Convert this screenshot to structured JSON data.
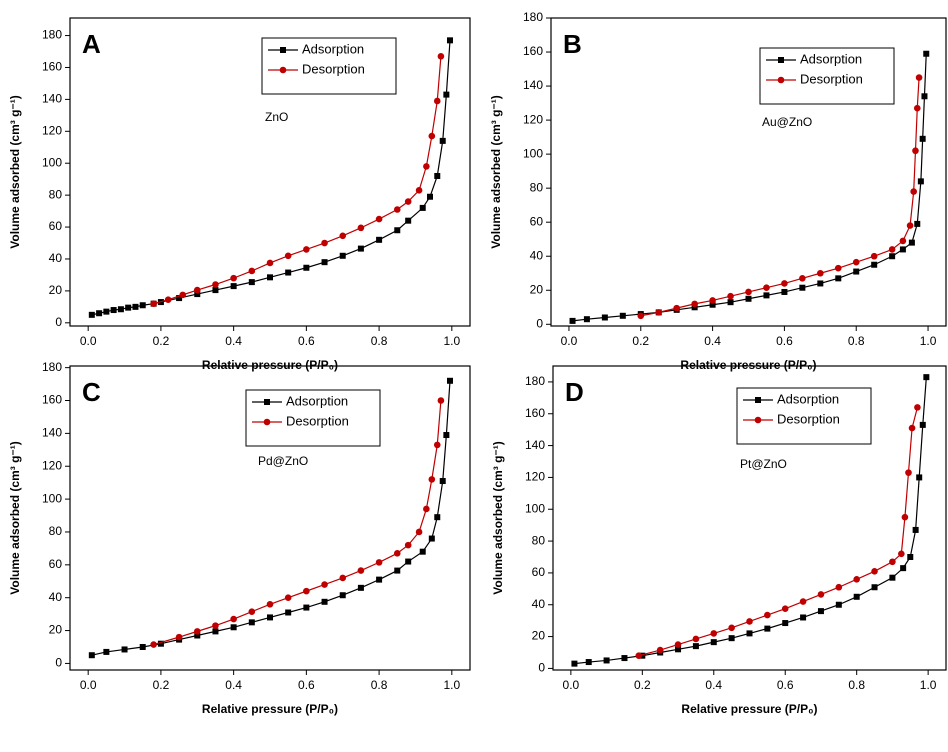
{
  "chart_data": [
    {
      "type": "line",
      "panel_label": "A",
      "sample_label": "ZnO",
      "xlabel": "Relative pressure (P/P₀)",
      "ylabel": "Volume adsorbed (cm³ g⁻¹)",
      "xlim": [
        -0.05,
        1.05
      ],
      "ylim": [
        -2,
        191
      ],
      "xticks": [
        {
          "value": 0,
          "label": "0.0"
        },
        0.2,
        0.4,
        0.6,
        0.8,
        {
          "value": 1,
          "label": "1.0"
        }
      ],
      "yticks": [
        0,
        20,
        40,
        60,
        80,
        100,
        120,
        140,
        160,
        180
      ],
      "series": [
        {
          "name": "Adsorption",
          "color": "#000000",
          "marker": "square",
          "x": [
            0.01,
            0.03,
            0.05,
            0.07,
            0.09,
            0.11,
            0.13,
            0.15,
            0.18,
            0.2,
            0.25,
            0.3,
            0.35,
            0.4,
            0.45,
            0.5,
            0.55,
            0.6,
            0.65,
            0.7,
            0.75,
            0.8,
            0.85,
            0.88,
            0.92,
            0.94,
            0.96,
            0.975,
            0.985,
            0.995
          ],
          "values": [
            5,
            6,
            7,
            8,
            8.5,
            9.5,
            10,
            11,
            12,
            13,
            15.5,
            18,
            20.5,
            23,
            25.5,
            28.5,
            31.5,
            34.5,
            38,
            42,
            46.5,
            52,
            58,
            64,
            72,
            79,
            92,
            114,
            143,
            177
          ]
        },
        {
          "name": "Desorption",
          "color": "#c00000",
          "marker": "circle",
          "x": [
            0.18,
            0.22,
            0.26,
            0.3,
            0.35,
            0.4,
            0.45,
            0.5,
            0.55,
            0.6,
            0.65,
            0.7,
            0.75,
            0.8,
            0.85,
            0.88,
            0.91,
            0.93,
            0.945,
            0.96,
            0.97
          ],
          "values": [
            12,
            14.5,
            17.5,
            20.5,
            24,
            28,
            32.5,
            37.5,
            42,
            46,
            50,
            54.5,
            59.5,
            65,
            71,
            76,
            83,
            98,
            117,
            139,
            167
          ]
        }
      ]
    },
    {
      "type": "line",
      "panel_label": "B",
      "sample_label": "Au@ZnO",
      "xlabel": "Relative pressure (P/P₀)",
      "ylabel": "Volume adsorbed (cm³ g⁻¹)",
      "xlim": [
        -0.05,
        1.05
      ],
      "ylim": [
        -1,
        180
      ],
      "xticks": [
        {
          "value": 0,
          "label": "0.0"
        },
        0.2,
        0.4,
        0.6,
        0.8,
        {
          "value": 1,
          "label": "1.0"
        }
      ],
      "yticks": [
        0,
        20,
        40,
        60,
        80,
        100,
        120,
        140,
        160,
        180
      ],
      "series": [
        {
          "name": "Adsorption",
          "color": "#000000",
          "marker": "square",
          "x": [
            0.01,
            0.05,
            0.1,
            0.15,
            0.2,
            0.25,
            0.3,
            0.35,
            0.4,
            0.45,
            0.5,
            0.55,
            0.6,
            0.65,
            0.7,
            0.75,
            0.8,
            0.85,
            0.9,
            0.93,
            0.955,
            0.97,
            0.98,
            0.985,
            0.99,
            0.995
          ],
          "values": [
            2,
            3,
            4,
            5,
            6,
            7,
            8.5,
            10,
            11.5,
            13,
            15,
            17,
            19,
            21.5,
            24,
            27,
            31,
            35,
            40,
            44,
            48,
            59,
            84,
            109,
            134,
            159
          ]
        },
        {
          "name": "Desorption",
          "color": "#c00000",
          "marker": "circle",
          "x": [
            0.2,
            0.25,
            0.3,
            0.35,
            0.4,
            0.45,
            0.5,
            0.55,
            0.6,
            0.65,
            0.7,
            0.75,
            0.8,
            0.85,
            0.9,
            0.93,
            0.95,
            0.96,
            0.965,
            0.97,
            0.975
          ],
          "values": [
            5,
            7,
            9.5,
            12,
            14,
            16.5,
            19,
            21.5,
            24,
            27,
            30,
            33,
            36.5,
            40,
            44,
            49,
            58,
            78,
            102,
            127,
            145
          ]
        }
      ]
    },
    {
      "type": "line",
      "panel_label": "C",
      "sample_label": "Pd@ZnO",
      "xlabel": "Relative pressure (P/P₀)",
      "ylabel": "Volume adsorbed (cm³ g⁻¹)",
      "xlim": [
        -0.05,
        1.05
      ],
      "ylim": [
        -4,
        181
      ],
      "xticks": [
        {
          "value": 0,
          "label": "0.0"
        },
        0.2,
        0.4,
        0.6,
        0.8,
        {
          "value": 1,
          "label": "1.0"
        }
      ],
      "yticks": [
        0,
        20,
        40,
        60,
        80,
        100,
        120,
        140,
        160,
        180
      ],
      "series": [
        {
          "name": "Adsorption",
          "color": "#000000",
          "marker": "square",
          "x": [
            0.01,
            0.05,
            0.1,
            0.15,
            0.2,
            0.25,
            0.3,
            0.35,
            0.4,
            0.45,
            0.5,
            0.55,
            0.6,
            0.65,
            0.7,
            0.75,
            0.8,
            0.85,
            0.88,
            0.92,
            0.945,
            0.96,
            0.975,
            0.985,
            0.995
          ],
          "values": [
            5,
            7,
            8.5,
            10,
            12,
            14.5,
            17,
            19.5,
            22,
            25,
            28,
            31,
            34,
            37.5,
            41.5,
            46,
            51,
            56.5,
            62,
            68,
            76,
            89,
            111,
            139,
            172
          ]
        },
        {
          "name": "Desorption",
          "color": "#c00000",
          "marker": "circle",
          "x": [
            0.18,
            0.25,
            0.3,
            0.35,
            0.4,
            0.45,
            0.5,
            0.55,
            0.6,
            0.65,
            0.7,
            0.75,
            0.8,
            0.85,
            0.88,
            0.91,
            0.93,
            0.945,
            0.96,
            0.97
          ],
          "values": [
            11.5,
            16,
            19.5,
            23,
            27,
            31.5,
            36,
            40,
            44,
            48,
            52,
            56.5,
            61.5,
            67,
            72,
            80,
            94,
            112,
            133,
            160
          ]
        }
      ]
    },
    {
      "type": "line",
      "panel_label": "D",
      "sample_label": "Pt@ZnO",
      "xlabel": "Relative pressure (P/P₀)",
      "ylabel": "Volume adsorbed (cm³ g⁻¹)",
      "xlim": [
        -0.05,
        1.05
      ],
      "ylim": [
        -1,
        190
      ],
      "xticks": [
        {
          "value": 0,
          "label": "0.0"
        },
        0.2,
        0.4,
        0.6,
        0.8,
        {
          "value": 1,
          "label": "1.0"
        }
      ],
      "yticks": [
        0,
        20,
        40,
        60,
        80,
        100,
        120,
        140,
        160,
        180
      ],
      "series": [
        {
          "name": "Adsorption",
          "color": "#000000",
          "marker": "square",
          "x": [
            0.01,
            0.05,
            0.1,
            0.15,
            0.2,
            0.25,
            0.3,
            0.35,
            0.4,
            0.45,
            0.5,
            0.55,
            0.6,
            0.65,
            0.7,
            0.75,
            0.8,
            0.85,
            0.9,
            0.93,
            0.95,
            0.965,
            0.975,
            0.985,
            0.995
          ],
          "values": [
            3,
            4,
            5,
            6.5,
            8,
            10,
            12,
            14,
            16.5,
            19,
            22,
            25,
            28.5,
            32,
            36,
            40,
            45,
            51,
            57,
            63,
            70,
            87,
            120,
            153,
            183
          ]
        },
        {
          "name": "Desorption",
          "color": "#c00000",
          "marker": "circle",
          "x": [
            0.19,
            0.25,
            0.3,
            0.35,
            0.4,
            0.45,
            0.5,
            0.55,
            0.6,
            0.65,
            0.7,
            0.75,
            0.8,
            0.85,
            0.9,
            0.925,
            0.935,
            0.945,
            0.955,
            0.97
          ],
          "values": [
            8,
            11.5,
            15,
            18.5,
            22,
            25.5,
            29.5,
            33.5,
            37.5,
            42,
            46.5,
            51,
            56,
            61,
            67,
            72,
            95,
            123,
            151,
            164
          ]
        }
      ]
    }
  ]
}
